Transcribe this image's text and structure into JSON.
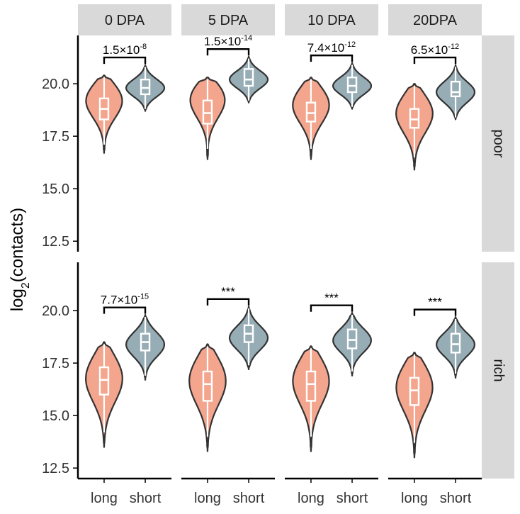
{
  "chart_data": {
    "type": "violin",
    "ylabel": "log2(contacts)",
    "ylabel_base": "log",
    "ylabel_sub": "2",
    "ylabel_rest": "(contacts)",
    "ylim": [
      12.0,
      22.3
    ],
    "yticks": [
      "12.5",
      "15.0",
      "17.5",
      "20.0"
    ],
    "ytick_values": [
      12.5,
      15.0,
      17.5,
      20.0
    ],
    "categories": [
      "long",
      "short"
    ],
    "facet_columns": [
      "0 DPA",
      "5 DPA",
      "10 DPA",
      "20DPA"
    ],
    "facet_rows": [
      "poor",
      "rich"
    ],
    "colors": {
      "long": "#f4a58d",
      "short": "#97adb5",
      "outline": "#333333",
      "strip": "#d9d9d9"
    },
    "panels": [
      {
        "row": "poor",
        "col": "0 DPA",
        "long": {
          "min": 16.7,
          "max": 20.4,
          "q1": 18.3,
          "median": 18.8,
          "q3": 19.3,
          "mode": 19.3,
          "whisker_low": 17.1,
          "whisker_high": 20.3
        },
        "short": {
          "min": 18.7,
          "max": 20.9,
          "q1": 19.5,
          "median": 19.8,
          "q3": 20.2,
          "mode": 19.8,
          "whisker_low": 18.8,
          "whisker_high": 20.8
        },
        "annotation": {
          "base": "1.5×10",
          "exp": "-8"
        }
      },
      {
        "row": "poor",
        "col": "5 DPA",
        "long": {
          "min": 16.4,
          "max": 20.3,
          "q1": 18.1,
          "median": 18.6,
          "q3": 19.2,
          "mode": 19.4,
          "whisker_low": 16.9,
          "whisker_high": 20.2
        },
        "short": {
          "min": 19.1,
          "max": 21.3,
          "q1": 19.9,
          "median": 20.2,
          "q3": 20.7,
          "mode": 20.2,
          "whisker_low": 19.2,
          "whisker_high": 21.2
        },
        "annotation": {
          "base": "1.5×10",
          "exp": "-14"
        }
      },
      {
        "row": "poor",
        "col": "10 DPA",
        "long": {
          "min": 16.4,
          "max": 20.3,
          "q1": 18.2,
          "median": 18.6,
          "q3": 19.1,
          "mode": 19.1,
          "whisker_low": 16.9,
          "whisker_high": 20.2
        },
        "short": {
          "min": 18.8,
          "max": 21.0,
          "q1": 19.6,
          "median": 19.9,
          "q3": 20.3,
          "mode": 19.9,
          "whisker_low": 18.9,
          "whisker_high": 20.9
        },
        "annotation": {
          "base": "7.4×10",
          "exp": "-12"
        }
      },
      {
        "row": "poor",
        "col": "20DPA",
        "long": {
          "min": 15.9,
          "max": 20.0,
          "q1": 17.9,
          "median": 18.3,
          "q3": 18.8,
          "mode": 18.7,
          "whisker_low": 16.5,
          "whisker_high": 19.9
        },
        "short": {
          "min": 18.3,
          "max": 20.9,
          "q1": 19.4,
          "median": 19.6,
          "q3": 20.1,
          "mode": 19.6,
          "whisker_low": 18.4,
          "whisker_high": 20.8
        },
        "annotation": {
          "base": "6.5×10",
          "exp": "-12"
        }
      },
      {
        "row": "rich",
        "col": "0 DPA",
        "long": {
          "min": 13.5,
          "max": 18.5,
          "q1": 16.0,
          "median": 16.7,
          "q3": 17.3,
          "mode": 16.9,
          "whisker_low": 14.2,
          "whisker_high": 18.4
        },
        "short": {
          "min": 16.7,
          "max": 19.8,
          "q1": 18.1,
          "median": 18.5,
          "q3": 18.9,
          "mode": 18.4,
          "whisker_low": 16.9,
          "whisker_high": 19.7
        },
        "annotation": {
          "base": "7.7×10",
          "exp": "-15"
        }
      },
      {
        "row": "rich",
        "col": "5 DPA",
        "long": {
          "min": 13.3,
          "max": 18.4,
          "q1": 15.7,
          "median": 16.5,
          "q3": 17.1,
          "mode": 16.8,
          "whisker_low": 14.0,
          "whisker_high": 18.3
        },
        "short": {
          "min": 17.2,
          "max": 20.2,
          "q1": 18.5,
          "median": 18.9,
          "q3": 19.3,
          "mode": 18.7,
          "whisker_low": 17.4,
          "whisker_high": 20.1
        },
        "annotation": {
          "base": "***",
          "exp": ""
        }
      },
      {
        "row": "rich",
        "col": "10 DPA",
        "long": {
          "min": 13.3,
          "max": 18.3,
          "q1": 15.7,
          "median": 16.5,
          "q3": 17.1,
          "mode": 16.8,
          "whisker_low": 14.0,
          "whisker_high": 18.2
        },
        "short": {
          "min": 16.9,
          "max": 19.9,
          "q1": 18.2,
          "median": 18.6,
          "q3": 19.1,
          "mode": 18.6,
          "whisker_low": 17.1,
          "whisker_high": 19.8
        },
        "annotation": {
          "base": "***",
          "exp": ""
        }
      },
      {
        "row": "rich",
        "col": "20DPA",
        "long": {
          "min": 13.0,
          "max": 18.0,
          "q1": 15.5,
          "median": 16.2,
          "q3": 16.8,
          "mode": 16.5,
          "whisker_low": 13.7,
          "whisker_high": 17.9
        },
        "short": {
          "min": 16.8,
          "max": 19.7,
          "q1": 18.0,
          "median": 18.4,
          "q3": 18.9,
          "mode": 18.4,
          "whisker_low": 17.0,
          "whisker_high": 19.6
        },
        "annotation": {
          "base": "***",
          "exp": ""
        }
      }
    ]
  }
}
